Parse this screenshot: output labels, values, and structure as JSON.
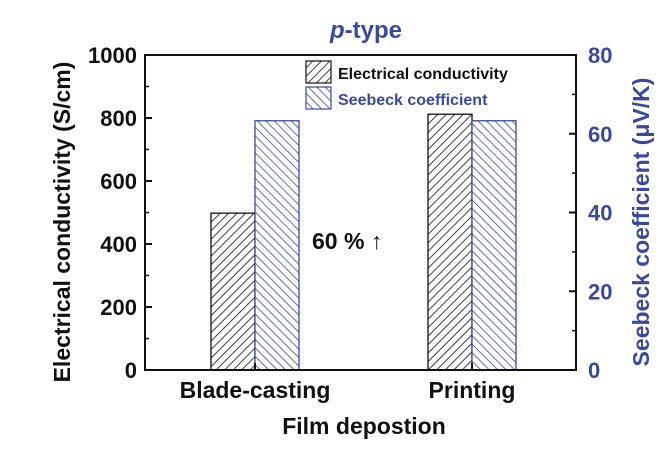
{
  "chart_data": {
    "type": "bar",
    "title_italic": "p",
    "title_rest": "-type",
    "xlabel": "Film depostion",
    "ylabel": "Electrical conductivity (S/cm)",
    "ylabel_right": "Seebeck coefficient (μV/K)",
    "categories": [
      "Blade-casting",
      "Printing"
    ],
    "ylim": [
      0,
      1000
    ],
    "ylim_right": [
      0,
      80
    ],
    "yticks": [
      "0",
      "200",
      "400",
      "600",
      "800",
      "1000"
    ],
    "yticks_right": [
      "0",
      "20",
      "40",
      "60",
      "80"
    ],
    "series": [
      {
        "name": "Electrical conductivity",
        "axis": "left",
        "values": [
          498,
          812
        ],
        "color": "#111111"
      },
      {
        "name": "Seebeck coefficient",
        "axis": "right",
        "values": [
          63.3,
          63.3
        ],
        "color": "#3a4a9a"
      }
    ],
    "annotation": "60 % ↑",
    "legend_position": "top-right",
    "grid": false
  }
}
